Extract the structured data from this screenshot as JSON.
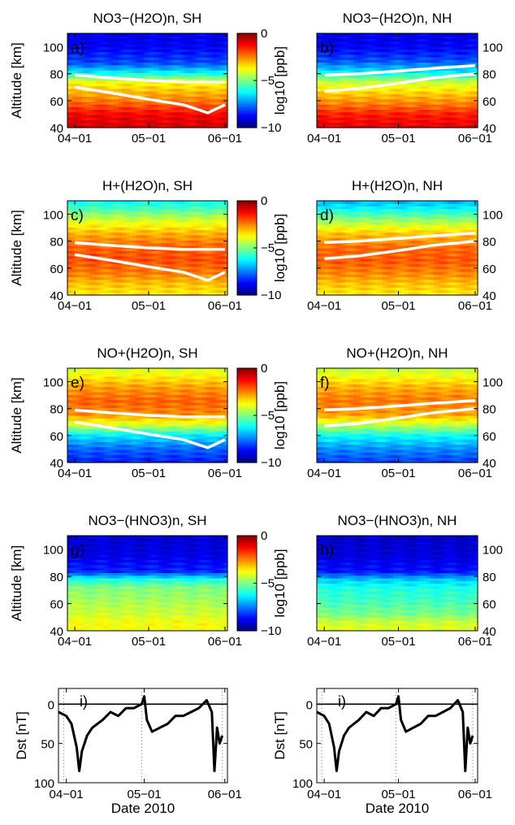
{
  "chart_data": [
    {
      "type": "heatmap",
      "panel_label": "a)",
      "title": "NO3−(H2O)n, SH",
      "ylabel": "Altitude [km]",
      "colorbar_label": "log10 [ppb]",
      "x_ticks": [
        "04−01",
        "05−01",
        "06−01"
      ],
      "y_ticks": [
        40,
        60,
        80,
        100
      ],
      "ylim": [
        40,
        110
      ],
      "colorbar_ticks": [
        0,
        -5,
        -10
      ],
      "colorbar_range": [
        -10,
        0
      ],
      "profile": [
        [
          40,
          -0.8
        ],
        [
          50,
          -1.2
        ],
        [
          58,
          -2.2
        ],
        [
          66,
          -3.0
        ],
        [
          74,
          -3.8
        ],
        [
          80,
          -6.0
        ],
        [
          88,
          -8.0
        ],
        [
          100,
          -8.8
        ],
        [
          110,
          -9.0
        ]
      ],
      "white_lines": [
        {
          "x": [
            "04-01",
            "04-15",
            "05-01",
            "05-15",
            "06-01"
          ],
          "y": [
            79,
            77,
            75,
            74,
            74
          ]
        },
        {
          "x": [
            "04-01",
            "04-15",
            "05-01",
            "05-15",
            "05-25",
            "06-01"
          ],
          "y": [
            70,
            66,
            61,
            57,
            51,
            57
          ]
        }
      ]
    },
    {
      "type": "heatmap",
      "panel_label": "b)",
      "title": "NO3−(H2O)n, NH",
      "x_ticks": [
        "04−01",
        "05−01",
        "06−01"
      ],
      "y_ticks": [
        40,
        60,
        80,
        100
      ],
      "ylim": [
        40,
        110
      ],
      "profile": [
        [
          40,
          -1.0
        ],
        [
          50,
          -1.5
        ],
        [
          58,
          -2.5
        ],
        [
          66,
          -3.3
        ],
        [
          74,
          -4.3
        ],
        [
          82,
          -6.5
        ],
        [
          90,
          -8.0
        ],
        [
          100,
          -8.8
        ],
        [
          110,
          -9.0
        ]
      ],
      "white_lines": [
        {
          "x": [
            "04-01",
            "04-15",
            "05-01",
            "05-15",
            "06-01"
          ],
          "y": [
            79,
            80,
            82,
            84,
            86
          ]
        },
        {
          "x": [
            "04-01",
            "04-15",
            "05-01",
            "05-15",
            "06-01"
          ],
          "y": [
            67,
            69,
            73,
            77,
            80
          ]
        }
      ]
    },
    {
      "type": "heatmap",
      "panel_label": "c)",
      "title": "H+(H2O)n, SH",
      "ylabel": "Altitude [km]",
      "colorbar_label": "log10 [ppb]",
      "x_ticks": [
        "04−01",
        "05−01",
        "06−01"
      ],
      "y_ticks": [
        40,
        60,
        80,
        100
      ],
      "ylim": [
        40,
        110
      ],
      "colorbar_ticks": [
        0,
        -5,
        -10
      ],
      "colorbar_range": [
        -10,
        0
      ],
      "profile": [
        [
          40,
          -3.6
        ],
        [
          48,
          -3.2
        ],
        [
          56,
          -2.5
        ],
        [
          66,
          -2.0
        ],
        [
          76,
          -2.2
        ],
        [
          86,
          -3.0
        ],
        [
          96,
          -4.2
        ],
        [
          104,
          -5.5
        ],
        [
          110,
          -6.2
        ]
      ],
      "white_lines": [
        {
          "x": [
            "04-01",
            "04-15",
            "05-01",
            "05-15",
            "06-01"
          ],
          "y": [
            79,
            77,
            75,
            74,
            74
          ]
        },
        {
          "x": [
            "04-01",
            "04-15",
            "05-01",
            "05-15",
            "05-25",
            "06-01"
          ],
          "y": [
            70,
            66,
            61,
            57,
            51,
            57
          ]
        }
      ]
    },
    {
      "type": "heatmap",
      "panel_label": "d)",
      "title": "H+(H2O)n, NH",
      "x_ticks": [
        "04−01",
        "05−01",
        "06−01"
      ],
      "y_ticks": [
        40,
        60,
        80,
        100
      ],
      "ylim": [
        40,
        110
      ],
      "profile": [
        [
          40,
          -3.6
        ],
        [
          48,
          -3.2
        ],
        [
          56,
          -2.6
        ],
        [
          66,
          -2.1
        ],
        [
          76,
          -2.3
        ],
        [
          86,
          -3.2
        ],
        [
          96,
          -4.8
        ],
        [
          104,
          -6.2
        ],
        [
          110,
          -7.0
        ]
      ],
      "white_lines": [
        {
          "x": [
            "04-01",
            "04-15",
            "05-01",
            "05-15",
            "06-01"
          ],
          "y": [
            79,
            80,
            82,
            84,
            86
          ]
        },
        {
          "x": [
            "04-01",
            "04-15",
            "05-01",
            "05-15",
            "06-01"
          ],
          "y": [
            67,
            69,
            73,
            77,
            80
          ]
        }
      ]
    },
    {
      "type": "heatmap",
      "panel_label": "e)",
      "title": "NO+(H2O)n, SH",
      "ylabel": "Altitude [km]",
      "colorbar_label": "log10 [ppb]",
      "x_ticks": [
        "04−01",
        "05−01",
        "06−01"
      ],
      "y_ticks": [
        40,
        60,
        80,
        100
      ],
      "ylim": [
        40,
        110
      ],
      "colorbar_ticks": [
        0,
        -5,
        -10
      ],
      "colorbar_range": [
        -10,
        0
      ],
      "profile": [
        [
          40,
          -8.5
        ],
        [
          50,
          -7.8
        ],
        [
          60,
          -6.5
        ],
        [
          68,
          -4.2
        ],
        [
          76,
          -2.6
        ],
        [
          86,
          -2.2
        ],
        [
          96,
          -2.8
        ],
        [
          104,
          -3.6
        ],
        [
          110,
          -4.2
        ]
      ],
      "white_lines": [
        {
          "x": [
            "04-01",
            "04-15",
            "05-01",
            "05-15",
            "06-01"
          ],
          "y": [
            79,
            77,
            75,
            74,
            74
          ]
        },
        {
          "x": [
            "04-01",
            "04-15",
            "05-01",
            "05-15",
            "05-25",
            "06-01"
          ],
          "y": [
            70,
            66,
            61,
            57,
            51,
            57
          ]
        }
      ]
    },
    {
      "type": "heatmap",
      "panel_label": "f)",
      "title": "NO+(H2O)n, NH",
      "x_ticks": [
        "04−01",
        "05−01",
        "06−01"
      ],
      "y_ticks": [
        40,
        60,
        80,
        100
      ],
      "ylim": [
        40,
        110
      ],
      "profile": [
        [
          40,
          -8.2
        ],
        [
          50,
          -7.4
        ],
        [
          60,
          -6.2
        ],
        [
          68,
          -4.4
        ],
        [
          76,
          -2.8
        ],
        [
          86,
          -2.4
        ],
        [
          96,
          -3.0
        ],
        [
          104,
          -3.8
        ],
        [
          110,
          -4.4
        ]
      ],
      "white_lines": [
        {
          "x": [
            "04-01",
            "04-15",
            "05-01",
            "05-15",
            "06-01"
          ],
          "y": [
            79,
            80,
            82,
            84,
            86
          ]
        },
        {
          "x": [
            "04-01",
            "04-15",
            "05-01",
            "05-15",
            "06-01"
          ],
          "y": [
            67,
            69,
            73,
            77,
            80
          ]
        }
      ]
    },
    {
      "type": "heatmap",
      "panel_label": "g)",
      "title": "NO3−(HNO3)n, SH",
      "ylabel": "Altitude [km]",
      "colorbar_label": "log10 [ppb]",
      "x_ticks": [
        "04−01",
        "05−01",
        "06−01"
      ],
      "y_ticks": [
        40,
        60,
        80,
        100
      ],
      "ylim": [
        40,
        110
      ],
      "colorbar_ticks": [
        0,
        -5,
        -10
      ],
      "colorbar_range": [
        -10,
        0
      ],
      "profile": [
        [
          40,
          -3.8
        ],
        [
          46,
          -3.8
        ],
        [
          52,
          -4.2
        ],
        [
          62,
          -4.6
        ],
        [
          72,
          -5.0
        ],
        [
          78,
          -6.0
        ],
        [
          84,
          -8.4
        ],
        [
          96,
          -9.0
        ],
        [
          110,
          -9.2
        ]
      ],
      "white_lines": []
    },
    {
      "type": "heatmap",
      "panel_label": "h)",
      "title": "NO3−(HNO3)n, NH",
      "x_ticks": [
        "04−01",
        "05−01",
        "06−01"
      ],
      "y_ticks": [
        40,
        60,
        80,
        100
      ],
      "ylim": [
        40,
        110
      ],
      "profile": [
        [
          40,
          -4.0
        ],
        [
          46,
          -4.2
        ],
        [
          52,
          -5.0
        ],
        [
          62,
          -5.6
        ],
        [
          72,
          -6.0
        ],
        [
          78,
          -6.8
        ],
        [
          84,
          -8.6
        ],
        [
          96,
          -9.1
        ],
        [
          110,
          -9.3
        ]
      ],
      "white_lines": []
    },
    {
      "type": "line",
      "panel_label": "i)",
      "ylabel": "Dst [nT]",
      "xlabel": "Date 2010",
      "x_ticks": [
        "04−01",
        "05−01",
        "06−01"
      ],
      "y_ticks": [
        0,
        50,
        100
      ],
      "ylim": [
        100,
        -20
      ],
      "y_inverted": true,
      "x": [
        "03-29",
        "04-01",
        "04-03",
        "04-05",
        "04-06",
        "04-07",
        "04-09",
        "04-11",
        "04-13",
        "04-15",
        "04-18",
        "04-21",
        "04-24",
        "04-27",
        "04-30",
        "05-01",
        "05-02",
        "05-04",
        "05-07",
        "05-10",
        "05-13",
        "05-16",
        "05-19",
        "05-22",
        "05-25",
        "05-27",
        "05-28",
        "05-29",
        "05-30",
        "05-31"
      ],
      "y": [
        10,
        15,
        25,
        55,
        85,
        60,
        40,
        30,
        25,
        20,
        10,
        15,
        5,
        5,
        0,
        -10,
        20,
        35,
        30,
        25,
        15,
        15,
        10,
        5,
        -5,
        10,
        85,
        30,
        50,
        40
      ],
      "zero_line": 0
    },
    {
      "type": "line",
      "panel_label": "i)",
      "ylabel": "Dst [nT]",
      "xlabel": "Date 2010",
      "x_ticks": [
        "04−01",
        "05−01",
        "06−01"
      ],
      "y_ticks": [
        0,
        50,
        100
      ],
      "ylim": [
        100,
        -20
      ],
      "y_inverted": true,
      "x": [
        "03-29",
        "04-01",
        "04-03",
        "04-05",
        "04-06",
        "04-07",
        "04-09",
        "04-11",
        "04-13",
        "04-15",
        "04-18",
        "04-21",
        "04-24",
        "04-27",
        "04-30",
        "05-01",
        "05-02",
        "05-04",
        "05-07",
        "05-10",
        "05-13",
        "05-16",
        "05-19",
        "05-22",
        "05-25",
        "05-27",
        "05-28",
        "05-29",
        "05-30",
        "05-31"
      ],
      "y": [
        10,
        15,
        25,
        55,
        85,
        60,
        40,
        30,
        25,
        20,
        10,
        15,
        5,
        5,
        0,
        -10,
        20,
        35,
        30,
        25,
        15,
        15,
        10,
        5,
        -5,
        10,
        85,
        30,
        50,
        40
      ],
      "zero_line": 0
    }
  ]
}
